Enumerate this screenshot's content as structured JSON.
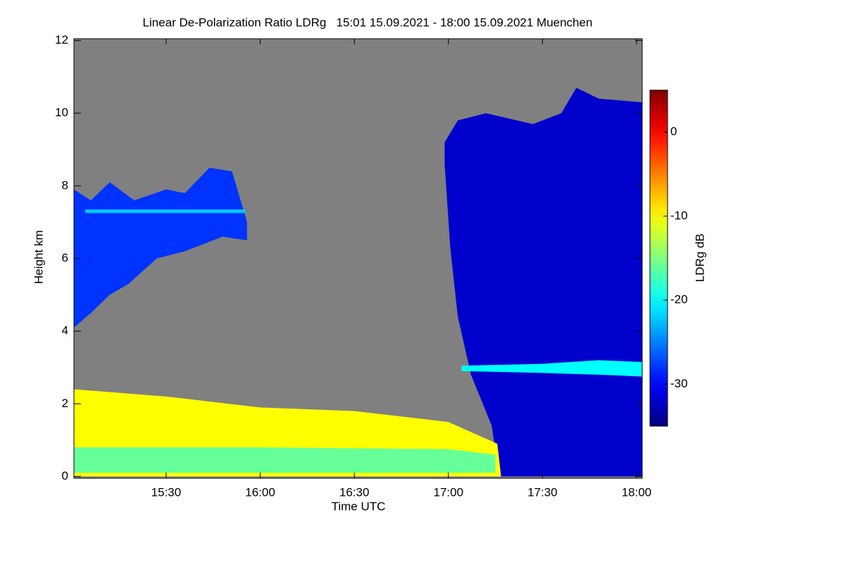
{
  "chart_data": {
    "type": "heatmap",
    "title": "Linear De-Polarization Ratio LDRg   15:01 15.09.2021 - 18:00 15.09.2021 Muenchen",
    "x_label": "Time UTC",
    "y_label": "Height km",
    "colorbar_label": "LDRg dB",
    "xlim": [
      15.01,
      18.03
    ],
    "xticks": [
      {
        "value": 15.5,
        "label": "15:30"
      },
      {
        "value": 16,
        "label": "16:00"
      },
      {
        "value": 16.5,
        "label": "16:30"
      },
      {
        "value": 17,
        "label": "17:00"
      },
      {
        "value": 17.5,
        "label": "17:30"
      },
      {
        "value": 18,
        "label": "18:00"
      }
    ],
    "ylim": [
      -0.05,
      12.05
    ],
    "yticks": [
      0,
      2,
      4,
      6,
      8,
      10,
      12
    ],
    "zlim": [
      -35,
      5
    ],
    "zticks": [
      0,
      -10,
      -20,
      -30
    ],
    "colormap": "jet",
    "background": "#808080",
    "regions": [
      {
        "value": -28,
        "x": [
          15.01,
          15.01,
          15.1,
          15.2,
          15.33,
          15.5,
          15.6,
          15.73,
          15.85,
          15.93,
          15.93,
          15.8,
          15.6,
          15.45,
          15.3,
          15.2,
          15.1
        ],
        "y": [
          4.1,
          7.9,
          7.6,
          8.1,
          7.6,
          7.9,
          7.8,
          8.5,
          8.4,
          7.0,
          6.5,
          6.6,
          6.2,
          6.0,
          5.3,
          5.0,
          4.5
        ]
      },
      {
        "value": -32,
        "x": [
          16.98,
          17.05,
          17.2,
          17.45,
          17.6,
          17.68,
          17.8,
          18.03,
          18.03,
          17.27,
          17.23,
          17.12,
          17.05,
          17.01,
          16.98
        ],
        "y": [
          9.2,
          9.8,
          10.0,
          9.7,
          10.0,
          10.7,
          10.4,
          10.3,
          0,
          0,
          1.4,
          2.8,
          4.4,
          6.3,
          8.6
        ]
      },
      {
        "value": -10,
        "x": [
          15.01,
          15.01,
          15.5,
          16.0,
          16.5,
          17.0,
          17.26,
          17.28
        ],
        "y": [
          0,
          2.4,
          2.2,
          1.9,
          1.8,
          1.5,
          0.9,
          0
        ]
      },
      {
        "value": -16,
        "x": [
          15.01,
          15.01,
          16.0,
          17.0,
          17.25,
          17.25,
          16.0
        ],
        "y": [
          0.1,
          0.8,
          0.8,
          0.75,
          0.6,
          0.1,
          0.1
        ]
      },
      {
        "value": -20,
        "x": [
          17.07,
          17.07,
          17.5,
          17.8,
          18.03,
          18.03,
          17.8,
          17.5
        ],
        "y": [
          2.9,
          3.05,
          3.1,
          3.2,
          3.15,
          2.75,
          2.8,
          2.85
        ]
      },
      {
        "value": -22,
        "x": [
          15.07,
          15.07,
          15.92,
          15.92
        ],
        "y": [
          7.25,
          7.35,
          7.35,
          7.25
        ]
      }
    ]
  }
}
